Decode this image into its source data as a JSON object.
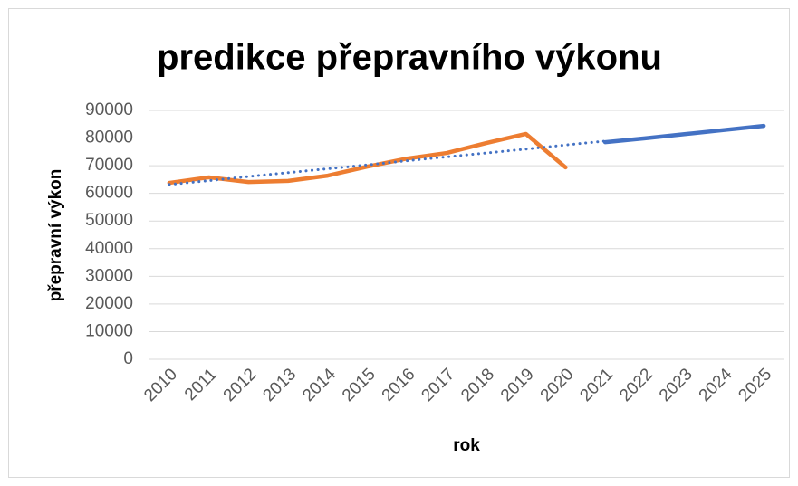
{
  "chart_data": {
    "type": "line",
    "title": "predikce přepravního výkonu",
    "x_label": "rok",
    "y_label": "přepravní výkon",
    "categories": [
      "2010",
      "2011",
      "2012",
      "2013",
      "2014",
      "2015",
      "2016",
      "2017",
      "2018",
      "2019",
      "2020",
      "2021",
      "2022",
      "2023",
      "2024",
      "2025"
    ],
    "series": [
      {
        "color": "#ed7d31",
        "dash": "solid",
        "values": [
          63800,
          65800,
          64100,
          64500,
          66400,
          69700,
          72600,
          74600,
          78200,
          81500,
          69400,
          null,
          null,
          null,
          null,
          null
        ]
      },
      {
        "color": "#4472c4",
        "dash": "solid",
        "values": [
          null,
          null,
          null,
          null,
          null,
          null,
          null,
          null,
          null,
          null,
          null,
          78500,
          79900,
          81400,
          82900,
          84400
        ]
      },
      {
        "color": "#4472c4",
        "dash": "dotted",
        "values": [
          63200,
          64600,
          66100,
          67500,
          68900,
          70300,
          71800,
          73200,
          74600,
          76000,
          77500,
          78900,
          null,
          null,
          null,
          null
        ]
      }
    ],
    "ylim": [
      0,
      90000
    ],
    "yticks": [
      0,
      10000,
      20000,
      30000,
      40000,
      50000,
      60000,
      70000,
      80000,
      90000
    ],
    "grid": true
  }
}
